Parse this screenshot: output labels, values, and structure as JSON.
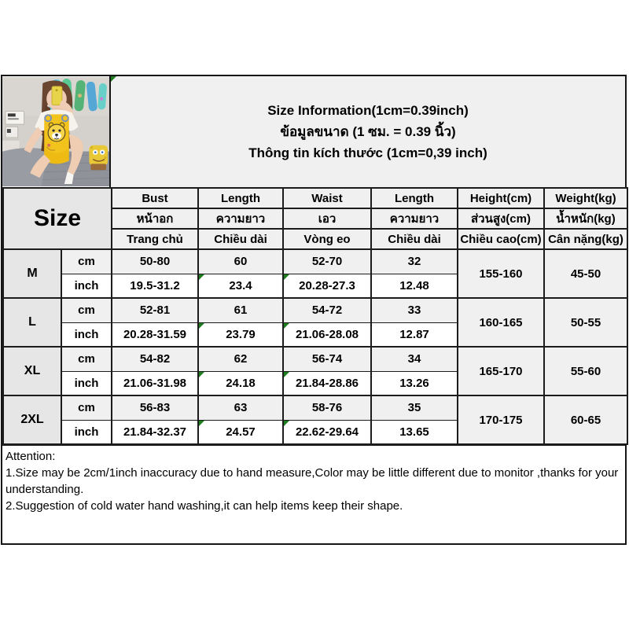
{
  "header": {
    "title_en": "Size Information(1cm=0.39inch)",
    "title_th": "ข้อมูลขนาด (1 ซม. = 0.39 นิ้ว)",
    "title_vi": "Thông tin kích thước (1cm=0,39 inch)"
  },
  "product_image": {
    "description": "mirror-selfie of model in yellow bear-print pajama set with SpongeBob plush on grey bed"
  },
  "table": {
    "corner_label": "Size",
    "columns": [
      {
        "en": "Bust",
        "th": "หน้าอก",
        "vi": "Trang chủ"
      },
      {
        "en": "Length",
        "th": "ความยาว",
        "vi": "Chiều dài"
      },
      {
        "en": "Waist",
        "th": "เอว",
        "vi": "Vòng eo"
      },
      {
        "en": "Length",
        "th": "ความยาว",
        "vi": "Chiều dài"
      },
      {
        "en": "Height(cm)",
        "th": "ส่วนสูง(cm)",
        "vi": "Chiều cao(cm)"
      },
      {
        "en": "Weight(kg)",
        "th": "น้ำหนัก(kg)",
        "vi": "Cân nặng(kg)"
      }
    ],
    "unit_labels": {
      "cm": "cm",
      "inch": "inch"
    },
    "rows": [
      {
        "size": "M",
        "cm": [
          "50-80",
          "60",
          "52-70",
          "32"
        ],
        "inch": [
          "19.5-31.2",
          "23.4",
          "20.28-27.3",
          "12.48"
        ],
        "height": "155-160",
        "weight": "45-50"
      },
      {
        "size": "L",
        "cm": [
          "52-81",
          "61",
          "54-72",
          "33"
        ],
        "inch": [
          "20.28-31.59",
          "23.79",
          "21.06-28.08",
          "12.87"
        ],
        "height": "160-165",
        "weight": "50-55"
      },
      {
        "size": "XL",
        "cm": [
          "54-82",
          "62",
          "56-74",
          "34"
        ],
        "inch": [
          "21.06-31.98",
          "24.18",
          "21.84-28.86",
          "13.26"
        ],
        "height": "165-170",
        "weight": "55-60"
      },
      {
        "size": "2XL",
        "cm": [
          "56-83",
          "63",
          "58-76",
          "35"
        ],
        "inch": [
          "21.84-32.37",
          "24.57",
          "22.62-29.64",
          "13.65"
        ],
        "height": "170-175",
        "weight": "60-65"
      }
    ],
    "flagged_inch_columns": [
      1,
      2
    ]
  },
  "attention": {
    "title": "Attention:",
    "line1": "1.Size may be 2cm/1inch inaccuracy due to hand measure,Color may be little different due to monitor ,thanks for your understanding.",
    "line2": "2.Suggestion of cold water hand washing,it can help items keep their shape."
  },
  "colors": {
    "border": "#1c1c1c",
    "header_bg": "#f0f0f0",
    "size_col_bg": "#e6e6e6",
    "inch_row_bg": "#ffffff",
    "flag_green": "#1e7d1e",
    "pajama_yellow": "#f2c21d"
  }
}
